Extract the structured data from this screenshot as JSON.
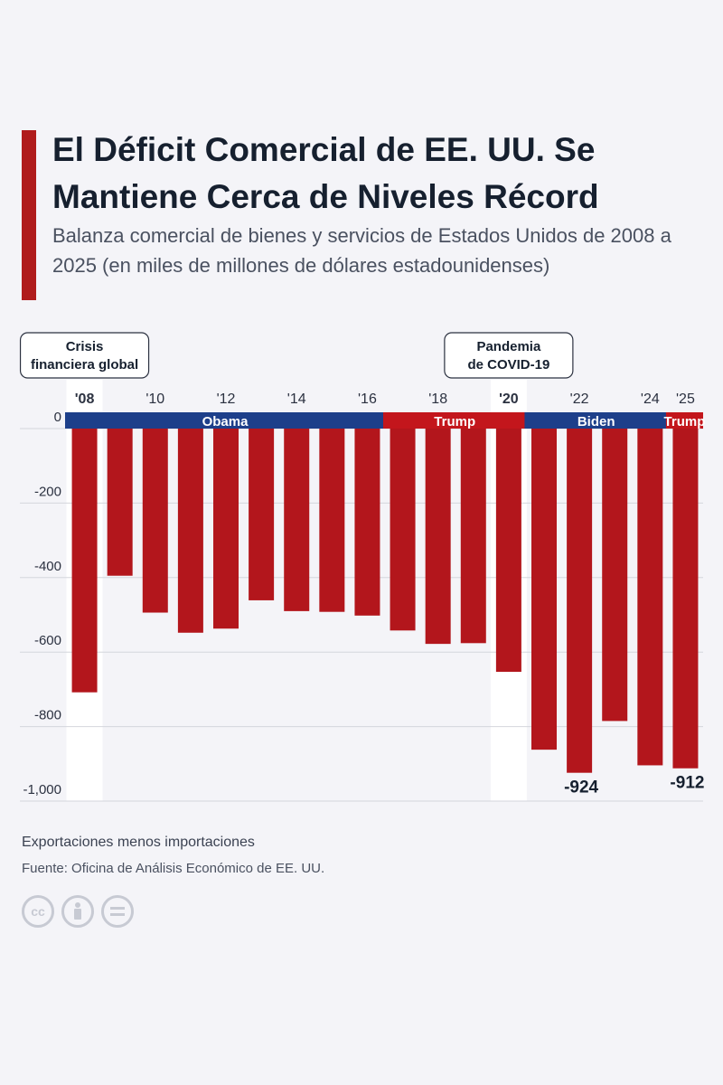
{
  "header": {
    "title": "El Déficit Comercial de EE. UU. Se Mantiene Cerca de Niveles Récord",
    "subtitle": "Balanza comercial de bienes y servicios de Estados Unidos de 2008 a 2025 (en miles de millones de dólares estadounidenses)"
  },
  "chart_data": {
    "type": "bar",
    "categories": [
      "2008",
      "2009",
      "2010",
      "2011",
      "2012",
      "2013",
      "2014",
      "2015",
      "2016",
      "2017",
      "2018",
      "2019",
      "2020",
      "2021",
      "2022",
      "2023",
      "2024",
      "2025"
    ],
    "values": [
      -708,
      -395,
      -494,
      -548,
      -537,
      -461,
      -490,
      -492,
      -502,
      -542,
      -578,
      -576,
      -653,
      -862,
      -924,
      -785,
      -904,
      -912
    ],
    "x_tick_labels": [
      {
        "index": 0,
        "label": "'08",
        "bold": true
      },
      {
        "index": 2,
        "label": "'10"
      },
      {
        "index": 4,
        "label": "'12"
      },
      {
        "index": 6,
        "label": "'14"
      },
      {
        "index": 8,
        "label": "'16"
      },
      {
        "index": 10,
        "label": "'18"
      },
      {
        "index": 12,
        "label": "'20",
        "bold": true
      },
      {
        "index": 14,
        "label": "'22"
      },
      {
        "index": 16,
        "label": "'24"
      },
      {
        "index": 17,
        "label": "'25"
      }
    ],
    "y_ticks": [
      {
        "value": 0,
        "label": "0"
      },
      {
        "value": -200,
        "label": "-200"
      },
      {
        "value": -400,
        "label": "-400"
      },
      {
        "value": -600,
        "label": "-600"
      },
      {
        "value": -800,
        "label": "-800"
      },
      {
        "value": -1000,
        "label": "-1,000"
      }
    ],
    "ylim": [
      -1000,
      0
    ],
    "grid": true,
    "bar_color": "#b3161c",
    "data_labels": [
      {
        "index": 14,
        "label": "-924"
      },
      {
        "index": 17,
        "label": "-912"
      }
    ],
    "highlights": [
      {
        "index": 0,
        "annotation": "Crisis financiera global"
      },
      {
        "index": 12,
        "annotation": "Pandemia de COVID-19"
      }
    ],
    "presidencies": [
      {
        "name": "Obama",
        "start": 0,
        "end": 8,
        "color": "#1d3f8a"
      },
      {
        "name": "Trump",
        "start": 9,
        "end": 12,
        "color": "#c3161c"
      },
      {
        "name": "Biden",
        "start": 13,
        "end": 16,
        "color": "#1d3f8a"
      },
      {
        "name": "Trump",
        "start": 17,
        "end": 17,
        "color": "#c3161c"
      }
    ]
  },
  "footer": {
    "note": "Exportaciones menos importaciones",
    "source": "Fuente: Oficina de Análisis Económico de EE. UU."
  },
  "license_icons": [
    "cc-icon",
    "attribution-icon",
    "no-derivatives-icon"
  ]
}
